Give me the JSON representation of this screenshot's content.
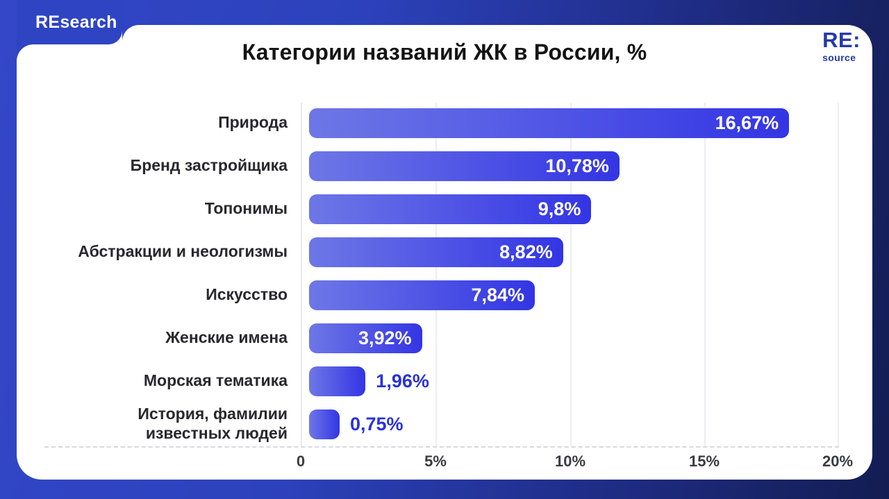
{
  "brand": {
    "tab_label": "REsearch",
    "logo_top": "RE:",
    "logo_bottom": "source"
  },
  "chart_data": {
    "type": "bar",
    "orientation": "horizontal",
    "title": "Категории названий ЖК в России, %",
    "categories": [
      "Природа",
      "Бренд застройщика",
      "Топонимы",
      "Абстракции и неологизмы",
      "Искусство",
      "Женские имена",
      "Морская тематика",
      "История, фамилии\nизвестных людей"
    ],
    "values": [
      16.67,
      10.78,
      9.8,
      8.82,
      7.84,
      3.92,
      1.96,
      0.75
    ],
    "value_labels": [
      "16,67%",
      "10,78%",
      "9,8%",
      "8,82%",
      "7,84%",
      "3,92%",
      "1,96%",
      "0,75%"
    ],
    "value_label_position": [
      "inside",
      "inside",
      "inside",
      "inside",
      "inside",
      "inside",
      "outside",
      "outside"
    ],
    "x_ticks": [
      "0",
      "5%",
      "10%",
      "15%",
      "20%"
    ],
    "xlim": [
      0,
      20
    ],
    "grid": "vertical-lines, dashed bottom axis",
    "legend": "none",
    "colors": {
      "bar_gradient_start": "#6e77e6",
      "bar_gradient_end": "#3335e4",
      "value_inside_text": "#ffffff",
      "value_outside_text": "#2a32d8",
      "category_text": "#28282d",
      "tick_text": "#3b3b42",
      "card_background": "#ffffff",
      "frame_gradient_start": "#3347c8",
      "frame_gradient_end": "#131d52",
      "brand_tab_background": "#2e44c3",
      "logo_text": "#2639ab"
    }
  }
}
